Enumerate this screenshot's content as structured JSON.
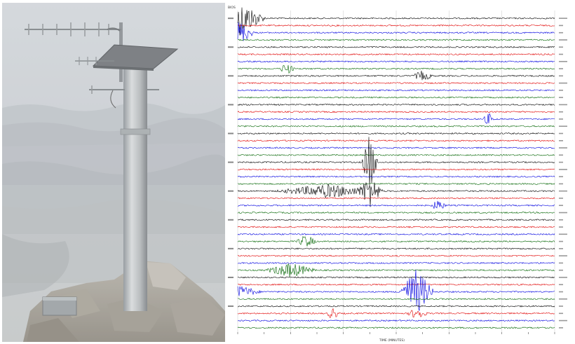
{
  "photo": {
    "subject": "seismic monitoring station: metal pole with yagi antennas and solar panel mounted on rocky summit, hazy mountain valley behind"
  },
  "helicorder": {
    "station_tag": "BIOS",
    "time_axis_label": "TIME (MINUTES)",
    "trace_colors": [
      "#000000",
      "#e00000",
      "#0000e0",
      "#006400"
    ],
    "row_count": 44,
    "bursts": [
      {
        "row": 0,
        "minute": 0.5,
        "amplitude": 2.6,
        "duration": 5,
        "color": "#000000"
      },
      {
        "row": 2,
        "minute": 0.3,
        "amplitude": 1.8,
        "duration": 3,
        "color": "#0000e0"
      },
      {
        "row": 7,
        "minute": 9.3,
        "amplitude": 0.9,
        "duration": 1.5,
        "color": "#000000"
      },
      {
        "row": 8,
        "minute": 35,
        "amplitude": 0.8,
        "duration": 2,
        "color": "#e00000"
      },
      {
        "row": 14,
        "minute": 47.5,
        "amplitude": 0.9,
        "duration": 1.2,
        "color": "#0000e0"
      },
      {
        "row": 20,
        "minute": 25,
        "amplitude": 4.5,
        "duration": 1.6,
        "color": "#000000"
      },
      {
        "row": 24,
        "minute": 17,
        "amplitude": 1.0,
        "duration": 10,
        "color": "#000000"
      },
      {
        "row": 24,
        "minute": 25,
        "amplitude": 2.5,
        "duration": 2.5,
        "color": "#000000"
      },
      {
        "row": 26,
        "minute": 38,
        "amplitude": 0.9,
        "duration": 1.5,
        "color": "#0000e0"
      },
      {
        "row": 31,
        "minute": 13,
        "amplitude": 1.0,
        "duration": 2,
        "color": "#0000e0"
      },
      {
        "row": 35,
        "minute": 10,
        "amplitude": 1.1,
        "duration": 5,
        "color": "#006400"
      },
      {
        "row": 38,
        "minute": 33.8,
        "amplitude": 3.5,
        "duration": 3.5,
        "color": "#006400"
      },
      {
        "row": 38,
        "minute": 0.5,
        "amplitude": 0.9,
        "duration": 4,
        "color": "#000000"
      },
      {
        "row": 41,
        "minute": 18,
        "amplitude": 1.0,
        "duration": 1.2,
        "color": "#e00000"
      },
      {
        "row": 41,
        "minute": 34,
        "amplitude": 0.9,
        "duration": 2,
        "color": "#e00000"
      }
    ]
  }
}
